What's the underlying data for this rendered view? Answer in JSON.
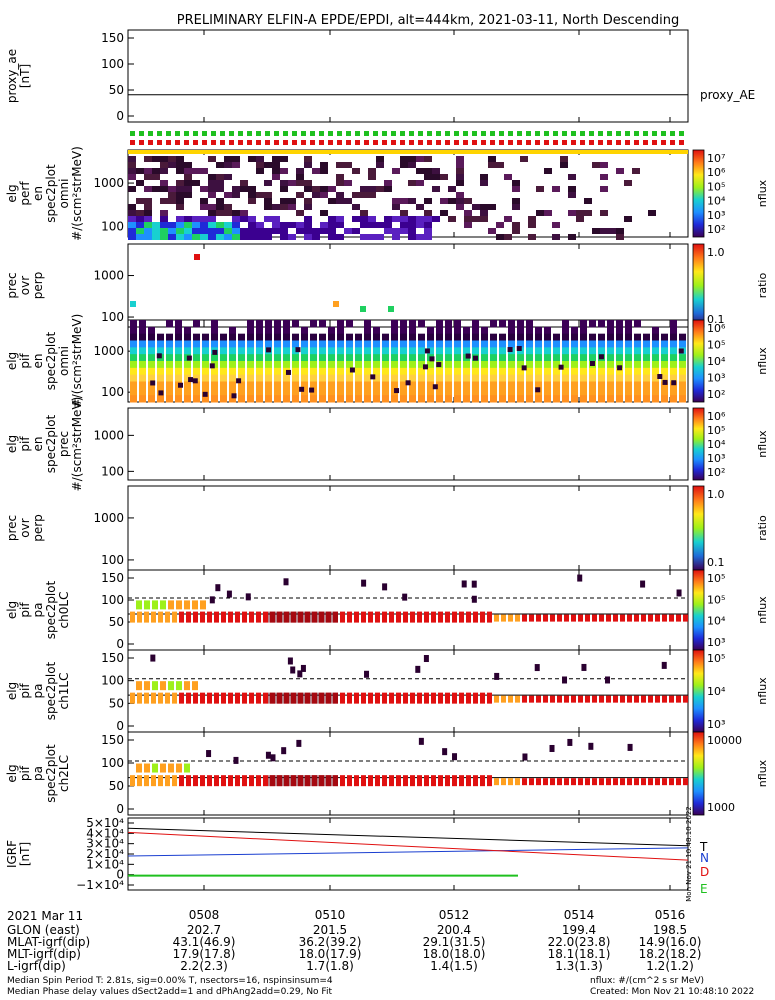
{
  "chart_data": {
    "type": "heatmap",
    "title": "PRELIMINARY ELFIN-A EPDE/EPDI, alt=444km, 2021-03-11, North Descending",
    "x_ticks": [
      "0508",
      "0510",
      "0512",
      "0514",
      "0516"
    ],
    "panels": [
      {
        "key": "proxy",
        "ylabel": [
          "proxy_ae",
          "[nT]"
        ],
        "yticks": [
          "150",
          "100",
          "50",
          "0"
        ],
        "series_label": "proxy_AE",
        "value": 37,
        "ylim": [
          0,
          160
        ]
      },
      {
        "key": "perp",
        "ylabel": [
          "elg",
          "perf",
          "en",
          "spec2plot",
          "omni",
          "#/(scm²strMeV)"
        ],
        "yticks": [
          "1000",
          "100"
        ],
        "colorbar": {
          "label": "nflux",
          "ticks": [
            "10⁷",
            "10⁶",
            "10⁵",
            "10⁴",
            "10³",
            "10²"
          ]
        }
      },
      {
        "key": "prec_ovr_perp_e",
        "ylabel": [
          "prec",
          "ovr",
          "perp"
        ],
        "yticks": [
          "1000",
          "100"
        ],
        "colorbar": {
          "label": "ratio",
          "ticks": [
            "1.0",
            "0.1"
          ]
        }
      },
      {
        "key": "omni_e",
        "ylabel": [
          "elg",
          "pif",
          "en",
          "spec2plot",
          "omni",
          "#/(scm²strMeV)"
        ],
        "yticks": [
          "1000",
          "100"
        ],
        "colorbar": {
          "label": "nflux",
          "ticks": [
            "10⁶",
            "10⁵",
            "10⁴",
            "10³",
            "10²"
          ]
        }
      },
      {
        "key": "prec_e",
        "ylabel": [
          "elg",
          "pif",
          "en",
          "spec2plot",
          "prec",
          "#/(scm²strMeV)"
        ],
        "yticks": [
          "1000",
          "100"
        ],
        "colorbar": {
          "label": "nflux",
          "ticks": [
            "10⁶",
            "10⁵",
            "10⁴",
            "10³",
            "10²"
          ]
        }
      },
      {
        "key": "prec_ovr_perp_2",
        "ylabel": [
          "prec",
          "ovr",
          "perp"
        ],
        "yticks": [
          "1000",
          "100"
        ],
        "colorbar": {
          "label": "ratio",
          "ticks": [
            "1.0",
            "0.1"
          ]
        }
      },
      {
        "key": "pa0",
        "ylabel": [
          "elg",
          "pif",
          "pa",
          "spec2plot",
          "ch0LC"
        ],
        "yticks": [
          "150",
          "100",
          "50",
          "0"
        ],
        "colorbar": {
          "label": "nflux",
          "ticks": [
            "10⁵",
            "10⁵",
            "10⁴",
            "10³"
          ]
        }
      },
      {
        "key": "pa1",
        "ylabel": [
          "elg",
          "pif",
          "pa",
          "spec2plot",
          "ch1LC"
        ],
        "yticks": [
          "150",
          "100",
          "50",
          "0"
        ],
        "colorbar": {
          "label": "nflux",
          "ticks": [
            "10⁵",
            "10⁴",
            "10³"
          ]
        }
      },
      {
        "key": "pa2",
        "ylabel": [
          "elg",
          "pif",
          "pa",
          "spec2plot",
          "ch2LC"
        ],
        "yticks": [
          "150",
          "100",
          "50",
          "0"
        ],
        "colorbar": {
          "label": "nflux",
          "ticks": [
            "10000",
            "1000"
          ]
        }
      },
      {
        "key": "igrf",
        "ylabel": [
          "IGRF",
          "[nT]"
        ],
        "yticks": [
          "5×10⁴",
          "4×10⁴",
          "3×10⁴",
          "2×10⁴",
          "1×10⁴",
          "0",
          "−1×10⁴"
        ],
        "legend": [
          "T",
          "N",
          "D",
          "E"
        ],
        "legend_colors": [
          "#000000",
          "#1a3fd0",
          "#e01010",
          "#1fc01f"
        ],
        "lines": [
          {
            "name": "T",
            "color": "#000000",
            "start": 45000,
            "end": 28000
          },
          {
            "name": "N",
            "color": "#1a3fd0",
            "start": 18000,
            "end": 26000
          },
          {
            "name": "D",
            "color": "#e01010",
            "start": 41000,
            "end": 14000
          },
          {
            "name": "E",
            "color": "#1fc01f",
            "start": -1000,
            "end": -1000
          }
        ],
        "ylim": [
          -15000,
          55000
        ],
        "created_stamp": "Mon Nov 21 10:48:10 2022"
      }
    ]
  },
  "ephemeris": {
    "date": "2021 Mar 11",
    "rows": [
      {
        "label": "GLON (east)",
        "values": [
          "202.7",
          "201.5",
          "200.4",
          "199.4",
          "198.5"
        ]
      },
      {
        "label": "MLAT-igrf(dip)",
        "values": [
          "43.1(46.9)",
          "36.2(39.2)",
          "29.1(31.5)",
          "22.0(23.8)",
          "14.9(16.0)"
        ]
      },
      {
        "label": "MLT-igrf(dip)",
        "values": [
          "17.9(17.8)",
          "18.0(17.9)",
          "18.0(18.0)",
          "18.1(18.1)",
          "18.2(18.2)"
        ]
      },
      {
        "label": "L-igrf(dip)",
        "values": [
          "2.2(2.3)",
          "1.7(1.8)",
          "1.4(1.5)",
          "1.3(1.3)",
          "1.2(1.2)"
        ]
      }
    ]
  },
  "footer": {
    "line1": "Median Spin Period T: 2.81s, sig=0.00% T, nsectors=16, nspinsinsum=4",
    "line2": "Median Phase delay values dSect2add=1 and dPhAng2add=0.29, No Fit",
    "units": "nflux: #/(cm^2 s sr MeV)",
    "created": "Created: Mon Nov 21 10:48:10 2022"
  },
  "colors": {
    "accent_red": "#e01010",
    "accent_green": "#1fc01f",
    "accent_blue": "#1a3fd0",
    "accent_yellow": "#ffd400",
    "accent_orange": "#ffa020"
  }
}
